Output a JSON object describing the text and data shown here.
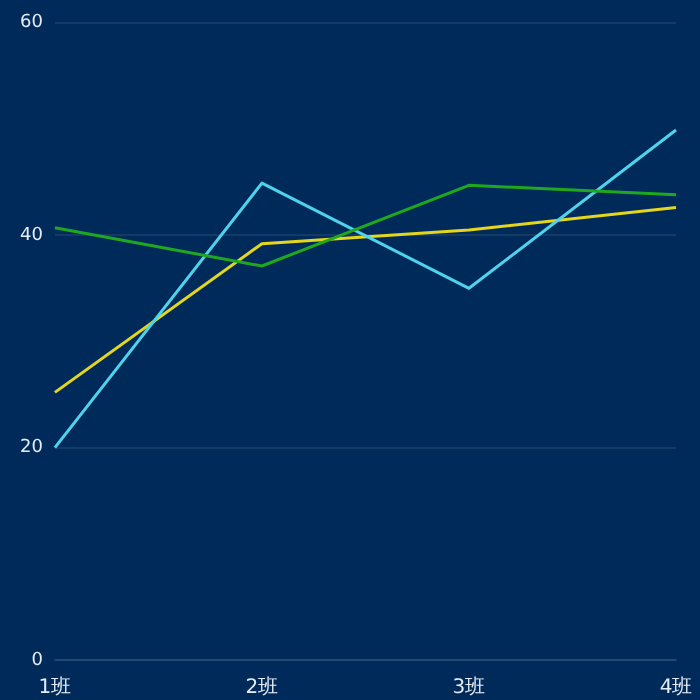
{
  "chart_data": {
    "type": "line",
    "categories": [
      "1班",
      "2班",
      "3班",
      "4班"
    ],
    "series": [
      {
        "color": "#1fa81f",
        "values": [
          40.7,
          37.1,
          44.7,
          43.8
        ]
      },
      {
        "color": "#4fd3ec",
        "values": [
          20,
          44.9,
          35,
          49.9
        ]
      },
      {
        "color": "#e3d61c",
        "values": [
          25.2,
          39.2,
          40.5,
          42.6
        ]
      }
    ],
    "ylim": [
      0,
      60
    ],
    "yticks": [
      0,
      20,
      40,
      60
    ],
    "grid": "y",
    "legend": false,
    "marker": "none",
    "line_style": "solid"
  }
}
